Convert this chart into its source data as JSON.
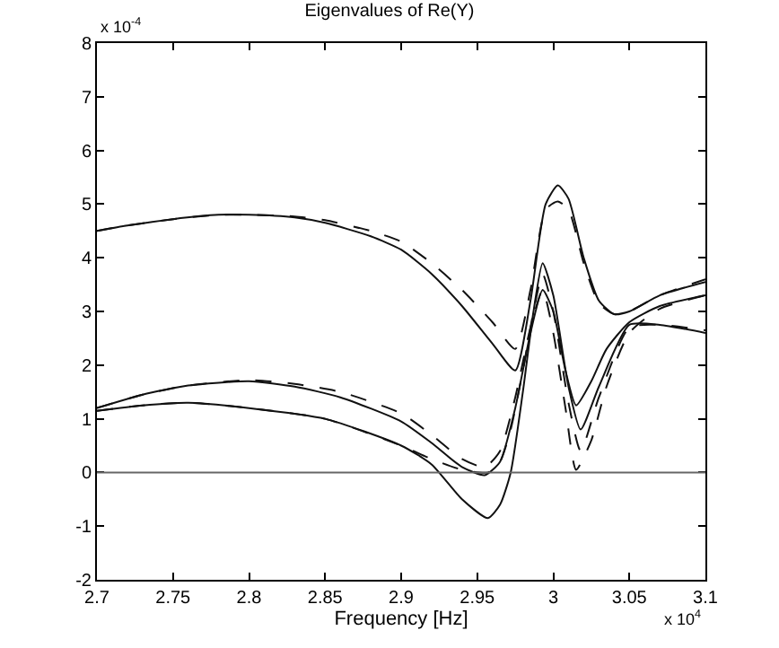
{
  "chart_data": {
    "type": "line",
    "title": "Eigenvalues of Re(Y)",
    "xlabel": "Frequency [Hz]",
    "annotations": [
      "x 10$^{-4}$",
      "x 10$^{4}$"
    ],
    "xlim": [
      2.7,
      3.1
    ],
    "xticks": [
      2.7,
      2.75,
      2.8,
      2.85,
      2.9,
      2.95,
      3,
      3.05,
      3.1
    ],
    "ylim": [
      -2,
      8
    ],
    "yticks": [
      -2,
      -1,
      0,
      1,
      2,
      3,
      4,
      5,
      6,
      7,
      8
    ],
    "marker": "none",
    "ref_lines": [
      {
        "axis": "y",
        "value": 0,
        "color": "#666666",
        "line_style": "solid"
      }
    ],
    "series": [
      {
        "color": "#111111",
        "line_style": "solid",
        "x": [
          2.7,
          2.72,
          2.75,
          2.78,
          2.8,
          2.83,
          2.85,
          2.88,
          2.9,
          2.92,
          2.94,
          2.96,
          2.975,
          2.985,
          2.995,
          3.003,
          3.01,
          3.02,
          3.03,
          3.04,
          3.05,
          3.07,
          3.1
        ],
        "values": [
          4.5,
          4.6,
          4.72,
          4.8,
          4.8,
          4.75,
          4.65,
          4.4,
          4.15,
          3.7,
          3.1,
          2.4,
          1.9,
          3.2,
          5.0,
          5.35,
          5.1,
          4.0,
          3.2,
          2.95,
          3.0,
          3.3,
          3.55
        ]
      },
      {
        "color": "#111111",
        "line_style": "dashed",
        "x": [
          2.7,
          2.72,
          2.75,
          2.78,
          2.8,
          2.83,
          2.85,
          2.88,
          2.9,
          2.92,
          2.94,
          2.96,
          2.975,
          2.985,
          2.995,
          3.003,
          3.01,
          3.02,
          3.03,
          3.04,
          3.05,
          3.07,
          3.1
        ],
        "values": [
          4.5,
          4.6,
          4.72,
          4.8,
          4.8,
          4.77,
          4.7,
          4.5,
          4.3,
          3.9,
          3.4,
          2.8,
          2.3,
          3.4,
          4.9,
          5.05,
          4.9,
          3.9,
          3.15,
          2.95,
          3.0,
          3.3,
          3.6
        ]
      },
      {
        "color": "#111111",
        "line_style": "solid",
        "x": [
          2.7,
          2.73,
          2.76,
          2.8,
          2.83,
          2.86,
          2.9,
          2.92,
          2.94,
          2.955,
          2.965,
          2.975,
          2.985,
          2.993,
          3.0,
          3.008,
          3.015,
          3.025,
          3.035,
          3.05,
          3.07,
          3.1
        ],
        "values": [
          1.2,
          1.45,
          1.62,
          1.7,
          1.6,
          1.4,
          0.95,
          0.55,
          0.1,
          -0.05,
          0.2,
          1.2,
          2.6,
          3.4,
          3.0,
          1.9,
          1.25,
          1.7,
          2.3,
          2.8,
          3.1,
          3.3
        ]
      },
      {
        "color": "#111111",
        "line_style": "dashed",
        "x": [
          2.7,
          2.73,
          2.76,
          2.8,
          2.83,
          2.86,
          2.9,
          2.92,
          2.94,
          2.955,
          2.965,
          2.975,
          2.985,
          2.993,
          3.0,
          3.008,
          3.015,
          3.025,
          3.035,
          3.05,
          3.07,
          3.1
        ],
        "values": [
          1.2,
          1.45,
          1.62,
          1.72,
          1.65,
          1.5,
          1.1,
          0.7,
          0.25,
          0.1,
          0.4,
          1.4,
          2.7,
          3.4,
          2.6,
          1.2,
          0.05,
          0.6,
          1.6,
          2.6,
          3.05,
          3.3
        ]
      },
      {
        "color": "#111111",
        "line_style": "solid",
        "x": [
          2.7,
          2.73,
          2.76,
          2.8,
          2.85,
          2.9,
          2.92,
          2.94,
          2.957,
          2.965,
          2.972,
          2.98,
          2.987,
          2.993,
          3.0,
          3.01,
          3.018,
          3.03,
          3.05,
          3.07,
          3.1
        ],
        "values": [
          1.15,
          1.25,
          1.3,
          1.2,
          1.0,
          0.5,
          0.15,
          -0.5,
          -0.85,
          -0.6,
          0.0,
          1.5,
          3.0,
          3.9,
          3.3,
          1.6,
          0.8,
          1.6,
          2.75,
          2.75,
          2.6
        ]
      },
      {
        "color": "#111111",
        "line_style": "dashed",
        "x": [
          2.7,
          2.73,
          2.76,
          2.8,
          2.85,
          2.9,
          2.92,
          2.94,
          2.957,
          2.965,
          2.972,
          2.98,
          2.987,
          2.993,
          3.0,
          3.01,
          3.018,
          3.03,
          3.05,
          3.07,
          3.1
        ],
        "values": [
          1.15,
          1.25,
          1.3,
          1.2,
          1.0,
          0.5,
          0.25,
          0.05,
          0.0,
          0.2,
          0.8,
          1.9,
          3.0,
          3.7,
          3.0,
          1.3,
          0.4,
          1.4,
          2.7,
          2.75,
          2.65
        ]
      }
    ]
  }
}
